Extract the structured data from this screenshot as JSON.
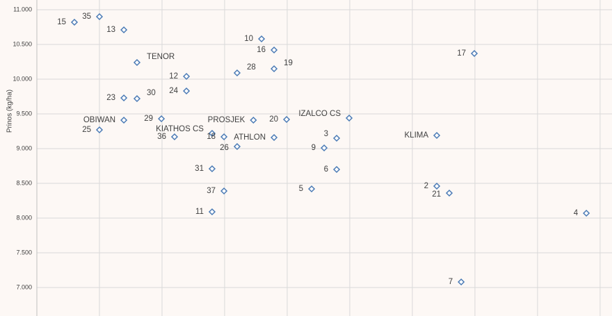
{
  "chart_data": {
    "type": "scatter",
    "y_label": "Prinos (kg/ha)",
    "xlim": [
      0,
      9.19
    ],
    "xticks": [
      0,
      1,
      2,
      3,
      4,
      5,
      6,
      7,
      8,
      9
    ],
    "ylim": [
      6590,
      11140
    ],
    "yticks": [
      {
        "value": 7000,
        "label": "7.000"
      },
      {
        "value": 7500,
        "label": "7.500"
      },
      {
        "value": 8000,
        "label": "8.000"
      },
      {
        "value": 8500,
        "label": "8.500"
      },
      {
        "value": 9000,
        "label": "9.000"
      },
      {
        "value": 9500,
        "label": "9.500"
      },
      {
        "value": 10000,
        "label": "10.000"
      },
      {
        "value": 10500,
        "label": "10.500"
      },
      {
        "value": 11000,
        "label": "11.000"
      }
    ],
    "grid": true,
    "color": "#4a7ab5",
    "labels": [
      "15",
      "35",
      "13",
      "TENOR",
      "12",
      "24",
      "23",
      "30",
      "29",
      "OBIWAN",
      "25",
      "36",
      "KIATHOS CS",
      "18",
      "28",
      "10",
      "16",
      "19",
      "PROSJEK",
      "20",
      "ATHLON",
      "26",
      "31",
      "37",
      "11",
      "IZALCO CS",
      "3",
      "9",
      "6",
      "5",
      "17",
      "KLIMA",
      "2",
      "21",
      "4",
      "7"
    ],
    "x": [
      0.6,
      1.0,
      1.39,
      1.6,
      2.39,
      2.39,
      1.39,
      1.6,
      1.99,
      1.39,
      1.0,
      2.2,
      2.8,
      2.99,
      3.2,
      3.59,
      3.79,
      3.79,
      3.46,
      3.99,
      3.79,
      3.2,
      2.8,
      2.99,
      2.8,
      4.99,
      4.79,
      4.59,
      4.79,
      4.39,
      6.99,
      6.39,
      6.39,
      6.59,
      8.78,
      6.78
    ],
    "values": [
      10820,
      10900,
      10710,
      10240,
      10040,
      9830,
      9730,
      9720,
      9430,
      9410,
      9270,
      9170,
      9220,
      9170,
      10090,
      10580,
      10420,
      10150,
      9410,
      9420,
      9160,
      9030,
      8710,
      8390,
      8090,
      9440,
      9150,
      9010,
      8700,
      8420,
      10370,
      9190,
      8460,
      8360,
      8070,
      7080
    ]
  }
}
